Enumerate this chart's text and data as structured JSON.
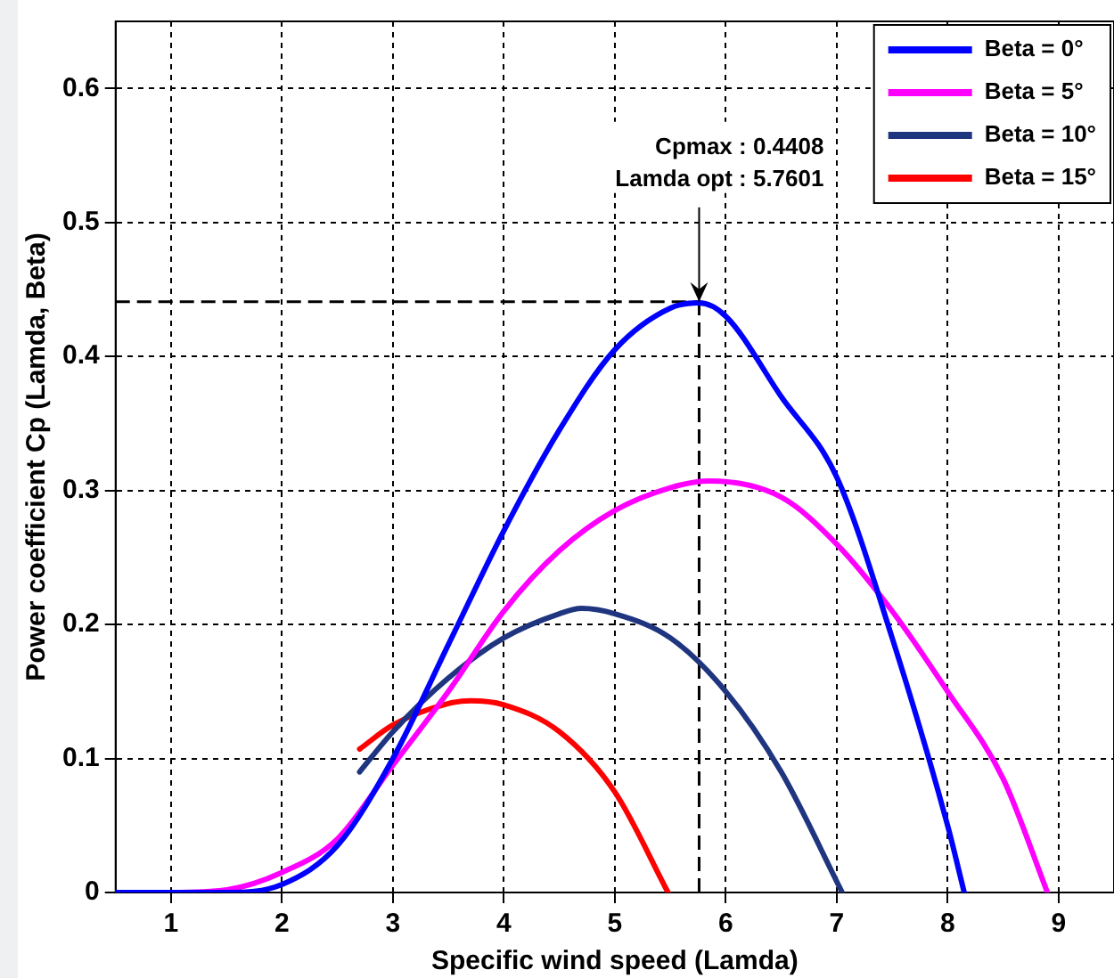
{
  "chart_data": {
    "type": "line",
    "xlabel": "Specific wind speed (Lamda)",
    "ylabel": "Power coefficient Cp (Lamda, Beta)",
    "xlim": [
      0.5,
      9.5
    ],
    "xticks": [
      1,
      2,
      3,
      4,
      5,
      6,
      7,
      8,
      9
    ],
    "ylim": [
      0,
      0.65
    ],
    "yticks": [
      0,
      0.1,
      0.2,
      0.3,
      0.4,
      0.5,
      0.6
    ],
    "grid": true,
    "legend": "top right",
    "marker": "none",
    "line_style": "solid",
    "annotations": [
      {
        "text": "Cpmax : 0.4408\nLamda opt : 5.7601",
        "x": 5.7601,
        "y": 0.4408
      }
    ],
    "ref_lines": [
      {
        "axis": "y",
        "value": 0.4408,
        "color": "#000000",
        "line_style": "dashed"
      },
      {
        "axis": "x",
        "value": 5.7601,
        "color": "#000000",
        "line_style": "dashed"
      }
    ],
    "series": [
      {
        "name": "Beta = 0°",
        "color": "#0000ff",
        "x": [
          0.5,
          1,
          1.5,
          2,
          2.5,
          3,
          3.5,
          4,
          4.5,
          5,
          5.5,
          5.76,
          6,
          6.5,
          7,
          7.5,
          8,
          8.15
        ],
        "values": [
          0,
          0,
          0,
          0.006,
          0.035,
          0.1,
          0.185,
          0.27,
          0.345,
          0.405,
          0.436,
          0.44,
          0.43,
          0.37,
          0.31,
          0.19,
          0.05,
          0
        ]
      },
      {
        "name": "Beta = 5°",
        "color": "#ff00ff",
        "x": [
          0.5,
          1,
          1.5,
          2,
          2.5,
          3,
          3.5,
          4,
          4.5,
          5,
          5.5,
          5.85,
          6.5,
          7,
          7.5,
          8,
          8.5,
          8.9
        ],
        "values": [
          0,
          0,
          0.002,
          0.015,
          0.04,
          0.095,
          0.15,
          0.21,
          0.255,
          0.285,
          0.302,
          0.307,
          0.295,
          0.26,
          0.21,
          0.15,
          0.085,
          0
        ]
      },
      {
        "name": "Beta = 10°",
        "color": "#1f3580",
        "x": [
          2.7,
          3,
          3.5,
          4,
          4.5,
          4.7,
          5,
          5.5,
          6,
          6.5,
          7.05
        ],
        "values": [
          0.09,
          0.12,
          0.16,
          0.19,
          0.208,
          0.212,
          0.208,
          0.19,
          0.15,
          0.09,
          0
        ]
      },
      {
        "name": "Beta = 15°",
        "color": "#ff0000",
        "x": [
          2.7,
          3,
          3.5,
          3.7,
          4,
          4.5,
          5,
          5.48
        ],
        "values": [
          0.107,
          0.125,
          0.141,
          0.143,
          0.14,
          0.12,
          0.075,
          0
        ]
      }
    ]
  }
}
